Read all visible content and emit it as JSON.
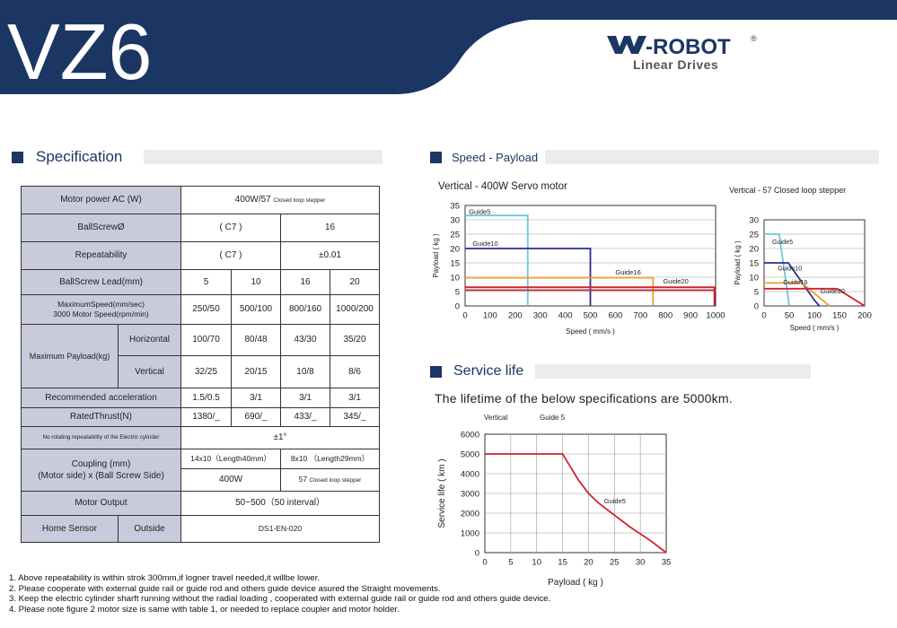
{
  "header": {
    "model": "VZ6",
    "brand": "-ROBOT",
    "registered": "®",
    "tagline": "Linear Drives"
  },
  "colors": {
    "navy": "#1c3664",
    "label_bg": "#c9cbdd",
    "cyan": "#6ec6e0",
    "blue": "#2b2f8c",
    "orange": "#f0a02c",
    "red": "#d4202f"
  },
  "spec": {
    "title": "Specification",
    "rows": {
      "motor_power": {
        "label": "Motor power AC (W)",
        "value": "400W/57",
        "value_note": "Closed loop stepper"
      },
      "ballscrew": {
        "label": "BallScrewØ",
        "grade": "( C7 )",
        "value": "16"
      },
      "repeatability": {
        "label": "Repeatability",
        "grade": "( C7 )",
        "value": "±0.01"
      },
      "lead": {
        "label": "BallScrew Lead(mm)",
        "values": [
          "5",
          "10",
          "16",
          "20"
        ]
      },
      "max_speed": {
        "label1": "MaximumSpeed(mm/sec)",
        "label2": "3000 Motor Speed(rpm/min)",
        "values": [
          "250/50",
          "500/100",
          "800/160",
          "1000/200"
        ]
      },
      "max_payload": {
        "label": "Maximum Payload(kg)",
        "horizontal_label": "Horizontal",
        "horizontal": [
          "100/70",
          "80/48",
          "43/30",
          "35/20"
        ],
        "vertical_label": "Vertical",
        "vertical": [
          "32/25",
          "20/15",
          "10/8",
          "8/6"
        ]
      },
      "acceleration": {
        "label": "Recommended acceleration",
        "values": [
          "1.5/0.5",
          "3/1",
          "3/1",
          "3/1"
        ]
      },
      "thrust": {
        "label": "RatedThrust(N)",
        "values": [
          "1380/_",
          "690/_",
          "433/_",
          "345/_"
        ]
      },
      "no_rotating": {
        "label": "No rotating repeatability of the Electric cylinder",
        "value": "±1°"
      },
      "coupling": {
        "label1": "Coupling (mm)",
        "label2": "(Motor side) x (Ball Screw Side)",
        "a": "14x10（Length40mm）",
        "b": "8x10 （Length29mm）",
        "a2": "400W",
        "b2": "57",
        "b2_note": "Closed loop stepper"
      },
      "motor_output": {
        "label": "Motor Output",
        "value": "50~500（50 interval）"
      },
      "home_sensor": {
        "label": "Home Sensor",
        "sub": "Outside",
        "value": "DS1-EN-020"
      }
    }
  },
  "speed_payload": {
    "title": "Speed - Payload"
  },
  "service_life": {
    "title": "Service life",
    "statement": "The lifetime of the below specifications are 5000km."
  },
  "notes": [
    "1. Above repeatability is within strok 300mm,if logner travel needed,it willbe lower.",
    "2. Please cooperate with external guide rail or guide rod and others guide device asured the Straight movements.",
    "3. Keep the electric cylinder sharft  running without the radial loading , cooperated with external guide rail or guide rod and others guide device.",
    "4. Please note figure 2 motor size is same with table 1, or needed to replace coupler and motor holder."
  ],
  "chart_data": [
    {
      "type": "line",
      "title": "Vertical - 400W Servo motor",
      "xlabel": "Speed ( mm/s )",
      "ylabel": "Payload ( kg )",
      "xlim": [
        0,
        1000
      ],
      "ylim": [
        0,
        35
      ],
      "xticks": [
        0,
        100,
        200,
        300,
        400,
        500,
        600,
        700,
        800,
        900,
        1000
      ],
      "yticks": [
        0,
        5,
        10,
        15,
        20,
        25,
        30,
        35
      ],
      "series": [
        {
          "name": "Guide5",
          "color": "#6ec6e0",
          "x": [
            0,
            250,
            250
          ],
          "y": [
            31.5,
            31.5,
            0
          ]
        },
        {
          "name": "Guide10",
          "color": "#2b2f8c",
          "x": [
            0,
            500,
            500
          ],
          "y": [
            20,
            20,
            0
          ]
        },
        {
          "name": "Guide16",
          "color": "#f0a02c",
          "x": [
            0,
            750,
            750
          ],
          "y": [
            9.8,
            9.8,
            0
          ]
        },
        {
          "name": "Guide20",
          "color": "#d4202f",
          "x": [
            0,
            995,
            995
          ],
          "y": [
            6.5,
            6.5,
            0
          ]
        },
        {
          "name": "",
          "color": "#d4202f",
          "x": [
            0,
            1000
          ],
          "y": [
            5.5,
            5.5
          ]
        }
      ]
    },
    {
      "type": "line",
      "title": "Vertical - 57 Closed loop stepper",
      "xlabel": "Speed ( mm/s )",
      "ylabel": "Payload ( kg )",
      "xlim": [
        0,
        200
      ],
      "ylim": [
        0,
        30
      ],
      "xticks": [
        0,
        50,
        100,
        150,
        200
      ],
      "yticks": [
        0,
        5,
        10,
        15,
        20,
        25,
        30
      ],
      "series": [
        {
          "name": "Guide5",
          "color": "#6ec6e0",
          "x": [
            0,
            30,
            50
          ],
          "y": [
            25,
            25,
            0
          ]
        },
        {
          "name": "Guide10",
          "color": "#2b2f8c",
          "x": [
            0,
            48,
            100,
            110
          ],
          "y": [
            15,
            15,
            2,
            0
          ]
        },
        {
          "name": "Guide16",
          "color": "#f0a02c",
          "x": [
            0,
            75,
            130
          ],
          "y": [
            8,
            8,
            0
          ]
        },
        {
          "name": "Guide20",
          "color": "#d4202f",
          "x": [
            0,
            145,
            200
          ],
          "y": [
            6,
            6,
            0
          ]
        }
      ]
    },
    {
      "type": "line",
      "title": "",
      "annotations": [
        "Vertical",
        "Guide 5"
      ],
      "xlabel": "Payload ( kg )",
      "ylabel": "Service life ( km )",
      "xlim": [
        0,
        35
      ],
      "ylim": [
        0,
        6000
      ],
      "xticks": [
        0,
        5,
        10,
        15,
        20,
        25,
        30,
        35
      ],
      "yticks": [
        0,
        1000,
        2000,
        3000,
        4000,
        5000,
        6000
      ],
      "series": [
        {
          "name": "Guide5",
          "color": "#d4202f",
          "x": [
            0,
            15,
            18,
            20,
            22,
            25,
            28,
            32,
            35
          ],
          "y": [
            5000,
            5000,
            3700,
            3000,
            2500,
            1900,
            1300,
            600,
            0
          ]
        }
      ]
    }
  ]
}
